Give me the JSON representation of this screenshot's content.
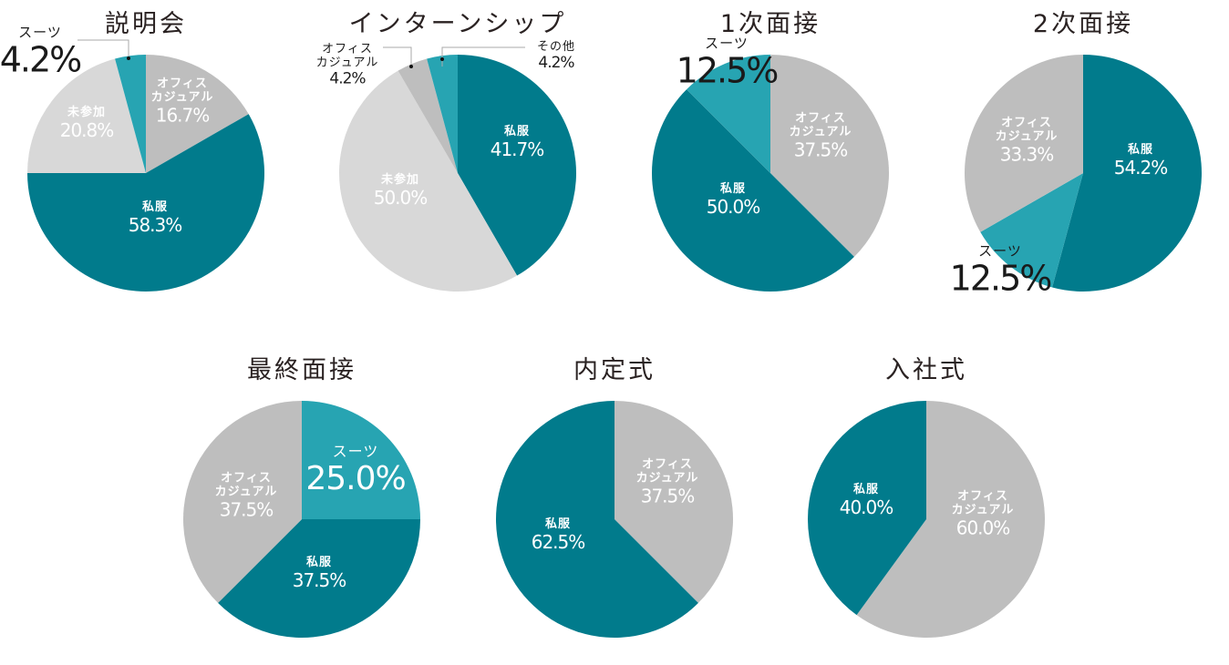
{
  "colors": {
    "private_clothes": "#017b8c",
    "suit": "#27a4b2",
    "office_casual": "#bebebe",
    "not_attended": "#d8d8d8",
    "other": "#27a4b2",
    "title_text": "#2a2222"
  },
  "charts": [
    {
      "title": "説明会",
      "slices": [
        {
          "name": "オフィスカジュアル",
          "name_lines": [
            "オフィス",
            "カジュアル"
          ],
          "pct": "16.7%"
        },
        {
          "name": "私服",
          "name_lines": [
            "私服"
          ],
          "pct": "58.3%"
        },
        {
          "name": "未参加",
          "name_lines": [
            "未参加"
          ],
          "pct": "20.8%"
        },
        {
          "name": "スーツ",
          "name_lines": [
            "スーツ"
          ],
          "pct": "4.2%"
        }
      ]
    },
    {
      "title": "インターンシップ",
      "slices": [
        {
          "name": "私服",
          "name_lines": [
            "私服"
          ],
          "pct": "41.7%"
        },
        {
          "name": "未参加",
          "name_lines": [
            "未参加"
          ],
          "pct": "50.0%"
        },
        {
          "name": "オフィスカジュアル",
          "name_lines": [
            "オフィス",
            "カジュアル"
          ],
          "pct": "4.2%"
        },
        {
          "name": "その他",
          "name_lines": [
            "その他"
          ],
          "pct": "4.2%"
        }
      ]
    },
    {
      "title": "1次面接",
      "slices": [
        {
          "name": "オフィスカジュアル",
          "name_lines": [
            "オフィス",
            "カジュアル"
          ],
          "pct": "37.5%"
        },
        {
          "name": "私服",
          "name_lines": [
            "私服"
          ],
          "pct": "50.0%"
        },
        {
          "name": "スーツ",
          "name_lines": [
            "スーツ"
          ],
          "pct": "12.5%"
        }
      ]
    },
    {
      "title": "2次面接",
      "slices": [
        {
          "name": "私服",
          "name_lines": [
            "私服"
          ],
          "pct": "54.2%"
        },
        {
          "name": "スーツ",
          "name_lines": [
            "スーツ"
          ],
          "pct": "12.5%"
        },
        {
          "name": "オフィスカジュアル",
          "name_lines": [
            "オフィス",
            "カジュアル"
          ],
          "pct": "33.3%"
        }
      ]
    },
    {
      "title": "最終面接",
      "slices": [
        {
          "name": "スーツ",
          "name_lines": [
            "スーツ"
          ],
          "pct": "25.0%"
        },
        {
          "name": "私服",
          "name_lines": [
            "私服"
          ],
          "pct": "37.5%"
        },
        {
          "name": "オフィスカジュアル",
          "name_lines": [
            "オフィス",
            "カジュアル"
          ],
          "pct": "37.5%"
        }
      ]
    },
    {
      "title": "内定式",
      "slices": [
        {
          "name": "オフィスカジュアル",
          "name_lines": [
            "オフィス",
            "カジュアル"
          ],
          "pct": "37.5%"
        },
        {
          "name": "私服",
          "name_lines": [
            "私服"
          ],
          "pct": "62.5%"
        }
      ]
    },
    {
      "title": "入社式",
      "slices": [
        {
          "name": "オフィスカジュアル",
          "name_lines": [
            "オフィス",
            "カジュアル"
          ],
          "pct": "60.0%"
        },
        {
          "name": "私服",
          "name_lines": [
            "私服"
          ],
          "pct": "40.0%"
        }
      ]
    }
  ],
  "chart_data": [
    {
      "type": "pie",
      "title": "説明会",
      "categories": [
        "オフィスカジュアル",
        "私服",
        "未参加",
        "スーツ"
      ],
      "values": [
        16.7,
        58.3,
        20.8,
        4.2
      ]
    },
    {
      "type": "pie",
      "title": "インターンシップ",
      "categories": [
        "私服",
        "未参加",
        "オフィスカジュアル",
        "その他"
      ],
      "values": [
        41.7,
        50.0,
        4.2,
        4.2
      ]
    },
    {
      "type": "pie",
      "title": "1次面接",
      "categories": [
        "オフィスカジュアル",
        "私服",
        "スーツ"
      ],
      "values": [
        37.5,
        50.0,
        12.5
      ]
    },
    {
      "type": "pie",
      "title": "2次面接",
      "categories": [
        "私服",
        "スーツ",
        "オフィスカジュアル"
      ],
      "values": [
        54.2,
        12.5,
        33.3
      ]
    },
    {
      "type": "pie",
      "title": "最終面接",
      "categories": [
        "スーツ",
        "私服",
        "オフィスカジュアル"
      ],
      "values": [
        25.0,
        37.5,
        37.5
      ]
    },
    {
      "type": "pie",
      "title": "内定式",
      "categories": [
        "オフィスカジュアル",
        "私服"
      ],
      "values": [
        37.5,
        62.5
      ]
    },
    {
      "type": "pie",
      "title": "入社式",
      "categories": [
        "オフィスカジュアル",
        "私服"
      ],
      "values": [
        60.0,
        40.0
      ]
    }
  ]
}
